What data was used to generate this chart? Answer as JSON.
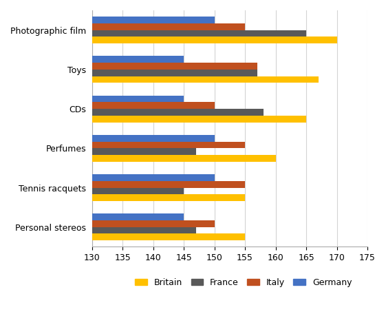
{
  "categories": [
    "Photographic film",
    "Toys",
    "CDs",
    "Perfumes",
    "Tennis racquets",
    "Personal stereos"
  ],
  "countries": [
    "Britain",
    "France",
    "Italy",
    "Germany"
  ],
  "colors": [
    "#FFC000",
    "#595959",
    "#C0501F",
    "#4472C4"
  ],
  "values": {
    "Britain": [
      170,
      167,
      165,
      160,
      155,
      155
    ],
    "France": [
      165,
      157,
      158,
      147,
      145,
      147
    ],
    "Italy": [
      155,
      157,
      150,
      155,
      155,
      150
    ],
    "Germany": [
      150,
      145,
      145,
      150,
      150,
      145
    ]
  },
  "xlim": [
    130,
    175
  ],
  "xticks": [
    130,
    135,
    140,
    145,
    150,
    155,
    160,
    165,
    170,
    175
  ],
  "bar_height": 0.17,
  "figsize": [
    5.61,
    4.72
  ],
  "dpi": 100,
  "background_color": "#FFFFFF",
  "grid_color": "#D3D3D3",
  "legend_labels": [
    "Britain",
    "France",
    "Italy",
    "Germany"
  ]
}
